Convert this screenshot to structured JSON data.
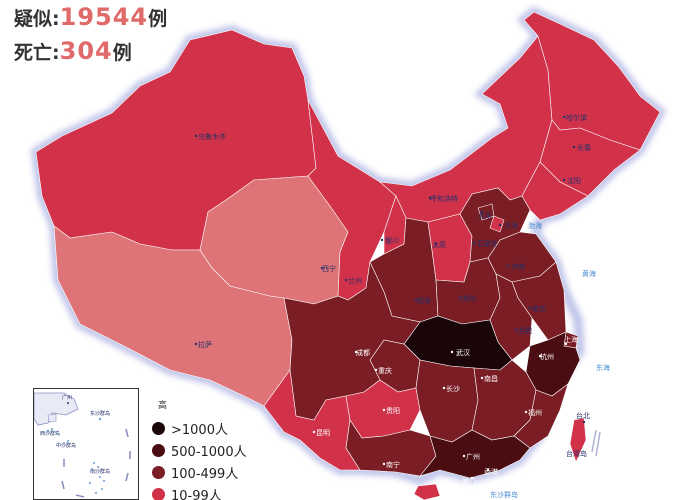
{
  "stats": {
    "suspected": {
      "label": "疑似",
      "value": "19544",
      "unit": "例"
    },
    "deaths": {
      "label": "死亡",
      "value": "304",
      "unit": "例"
    }
  },
  "colors": {
    "over_1000": "#1a0508",
    "c500_1000": "#4a0d12",
    "c100_499": "#7a1d24",
    "c10_99": "#d1324a",
    "c1_9": "#de7478",
    "border_glow": "#b8bde6",
    "sea": "#4a8bd1"
  },
  "legend": {
    "title": "高",
    "items": [
      {
        "label": ">1000人",
        "color_key": "over_1000"
      },
      {
        "label": "500-1000人",
        "color_key": "c500_1000"
      },
      {
        "label": "100-499人",
        "color_key": "c100_499"
      },
      {
        "label": "10-99人",
        "color_key": "c10_99"
      }
    ]
  },
  "cities": {
    "urumqi": "乌鲁木齐",
    "harbin": "哈尔滨",
    "changchun": "长春",
    "shenyang": "沈阳",
    "hohhot": "呼和浩特",
    "beijing": "北京",
    "tianjin": "天津",
    "shijiazhuang": "石家庄",
    "yinchuan": "银川",
    "taiyuan": "太原",
    "jinan": "济南",
    "xining": "西宁",
    "lanzhou": "兰州",
    "zhengzhou": "郑州",
    "xian": "西安",
    "nanjing": "南京",
    "hefei": "合肥",
    "shanghai": "上海",
    "lhasa": "拉萨",
    "chengdu": "成都",
    "wuhan": "武汉",
    "hangzhou": "杭州",
    "chongqing": "重庆",
    "changsha": "长沙",
    "nanchang": "南昌",
    "fuzhou": "福州",
    "guiyang": "贵阳",
    "kunming": "昆明",
    "nanning": "南宁",
    "guangzhou": "广州",
    "macau": "澳门",
    "hongkong": "香港",
    "taipei": "台北",
    "taiwan": "台湾岛"
  },
  "seas": {
    "bohai": "渤海",
    "yellow_sea": "黄海",
    "east_sea": "东海",
    "dongsha": "东沙群岛"
  },
  "inset": {
    "guangzhou": "广州",
    "xisha": "西沙群岛",
    "dongsha": "东沙群岛",
    "zhongsha": "中沙群岛",
    "nansha": "南沙群岛"
  }
}
